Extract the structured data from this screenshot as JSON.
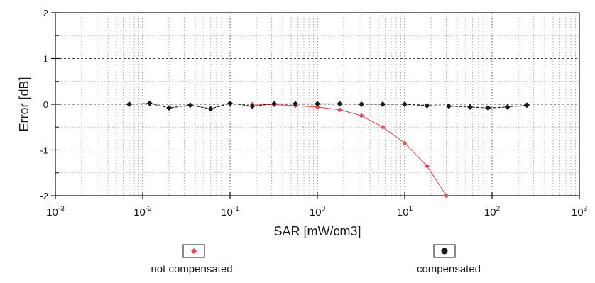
{
  "chart_data": {
    "type": "line",
    "xscale": "log",
    "xlim": [
      0.001,
      1000
    ],
    "ylim": [
      -2,
      2
    ],
    "xlabel": "SAR [mW/cm3]",
    "ylabel": "Error [dB]",
    "x_ticks": [
      {
        "base": "10",
        "exp": "-3",
        "value": 0.001
      },
      {
        "base": "10",
        "exp": "-2",
        "value": 0.01
      },
      {
        "base": "10",
        "exp": "-1",
        "value": 0.1
      },
      {
        "base": "10",
        "exp": "0",
        "value": 1
      },
      {
        "base": "10",
        "exp": "1",
        "value": 10
      },
      {
        "base": "10",
        "exp": "2",
        "value": 100
      },
      {
        "base": "10",
        "exp": "3",
        "value": 1000
      }
    ],
    "y_ticks": [
      {
        "label": "2",
        "value": 2
      },
      {
        "label": "1",
        "value": 1
      },
      {
        "label": "0",
        "value": 0
      },
      {
        "label": "-1",
        "value": -1
      },
      {
        "label": "-2",
        "value": -2
      }
    ],
    "grid": true,
    "legend_position": "bottom",
    "series": [
      {
        "name": "not compensated",
        "color": "#e05050",
        "marker": "diamond",
        "x": [
          0.18,
          0.32,
          0.56,
          1.0,
          1.8,
          3.2,
          5.6,
          10,
          18,
          30
        ],
        "y": [
          0.0,
          -0.01,
          -0.03,
          -0.06,
          -0.12,
          -0.25,
          -0.5,
          -0.85,
          -1.35,
          -2.0
        ]
      },
      {
        "name": "compensated",
        "color": "#1a1a1a",
        "marker": "diamond",
        "x": [
          0.007,
          0.012,
          0.02,
          0.035,
          0.06,
          0.1,
          0.18,
          0.32,
          0.56,
          1.0,
          1.8,
          3.2,
          5.6,
          10,
          18,
          32,
          56,
          90,
          150,
          250
        ],
        "y": [
          0.0,
          0.02,
          -0.08,
          -0.02,
          -0.1,
          0.02,
          -0.04,
          0.01,
          0.01,
          0.01,
          0.01,
          0.0,
          0.0,
          0.0,
          -0.03,
          -0.04,
          -0.06,
          -0.08,
          -0.06,
          -0.02
        ]
      }
    ]
  },
  "legend": {
    "items": [
      {
        "label": "not compensated",
        "color": "#e05050"
      },
      {
        "label": "compensated",
        "color": "#1a1a1a"
      }
    ]
  }
}
